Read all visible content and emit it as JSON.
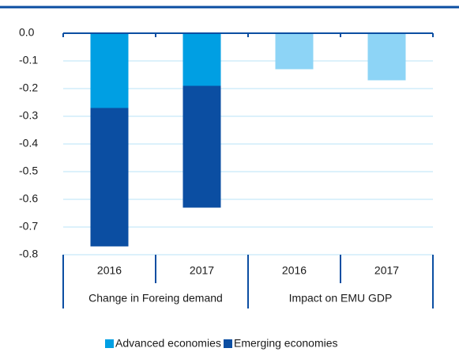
{
  "chart_data": {
    "type": "bar",
    "stacked": true,
    "categories": [
      "2016",
      "2017",
      "2016",
      "2017"
    ],
    "groups": [
      "Change in Foreing demand",
      "Impact on EMU GDP"
    ],
    "series": [
      {
        "name": "Advanced economies",
        "color": "#009fe3",
        "colors": [
          "#009fe3",
          "#009fe3",
          "#8dd4f6",
          "#8dd4f6"
        ],
        "values": [
          -0.27,
          -0.19,
          -0.13,
          -0.17
        ]
      },
      {
        "name": "Emerging economies",
        "color": "#0b4ea2",
        "values": [
          -0.5,
          -0.44,
          null,
          null
        ]
      }
    ],
    "ylim": [
      -0.8,
      0
    ],
    "yticks": [
      {
        "value": 0,
        "label": "0.0"
      },
      -0.1,
      -0.2,
      -0.3,
      -0.4,
      -0.5,
      -0.6,
      -0.7,
      -0.8
    ],
    "grid": true,
    "legend": "bottom"
  }
}
